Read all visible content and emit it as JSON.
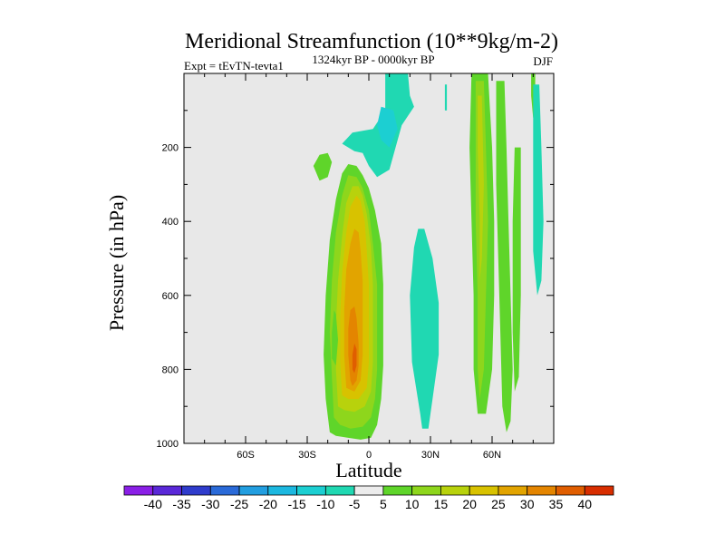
{
  "chart_data": {
    "type": "heatmap",
    "title": "Meridional Streamfunction (10**9kg/m-2)",
    "left_label": "Expt = tEvTN-tevta1",
    "center_label": "1324kyr BP - 0000kyr BP",
    "right_label": "DJF",
    "xlabel": "Latitude",
    "ylabel": "Pressure (in hPa)",
    "xlim": [
      -90,
      90
    ],
    "ylim": [
      1000,
      0
    ],
    "x_ticks": [
      {
        "value": -60,
        "label": "60S"
      },
      {
        "value": -30,
        "label": "30S"
      },
      {
        "value": 0,
        "label": "0"
      },
      {
        "value": 30,
        "label": "30N"
      },
      {
        "value": 60,
        "label": "60N"
      }
    ],
    "y_ticks": [
      {
        "value": 200,
        "label": "200"
      },
      {
        "value": 400,
        "label": "400"
      },
      {
        "value": 600,
        "label": "600"
      },
      {
        "value": 800,
        "label": "800"
      },
      {
        "value": 1000,
        "label": "1000"
      }
    ],
    "background_color": "#e8e8e8",
    "colorbar": {
      "levels": [
        "-40",
        "-35",
        "-30",
        "-25",
        "-20",
        "-15",
        "-10",
        "-5",
        "5",
        "10",
        "15",
        "20",
        "25",
        "30",
        "35",
        "40"
      ],
      "colors": [
        "#8a1fe6",
        "#5a28d8",
        "#2f3ccc",
        "#2a6ad8",
        "#229ee0",
        "#1cb8e0",
        "#1ccfd2",
        "#20d8b2",
        "#ececec",
        "#5fd52a",
        "#8ed61c",
        "#b8d20c",
        "#d8c200",
        "#e2a400",
        "#e48500",
        "#e05e00",
        "#d82e00"
      ]
    },
    "contours": [
      {
        "level": "10",
        "color": "#5fd52a",
        "points": [
          [
            -19,
            970
          ],
          [
            -21,
            880
          ],
          [
            -22,
            760
          ],
          [
            -21,
            600
          ],
          [
            -19,
            450
          ],
          [
            -16,
            340
          ],
          [
            -13,
            270
          ],
          [
            -10,
            245
          ],
          [
            -6,
            250
          ],
          [
            -3,
            275
          ],
          [
            0,
            310
          ],
          [
            3,
            370
          ],
          [
            6,
            460
          ],
          [
            7,
            570
          ],
          [
            7,
            690
          ],
          [
            7,
            790
          ],
          [
            6,
            880
          ],
          [
            4,
            950
          ],
          [
            1,
            985
          ],
          [
            -4,
            990
          ],
          [
            -10,
            985
          ],
          [
            -16,
            980
          ]
        ]
      },
      {
        "level": "15",
        "color": "#8ed61c",
        "points": [
          [
            -17,
            930
          ],
          [
            -18,
            820
          ],
          [
            -19,
            700
          ],
          [
            -18,
            560
          ],
          [
            -16,
            430
          ],
          [
            -13,
            330
          ],
          [
            -10,
            275
          ],
          [
            -6,
            280
          ],
          [
            -3,
            310
          ],
          [
            0,
            370
          ],
          [
            2,
            460
          ],
          [
            4,
            570
          ],
          [
            4,
            700
          ],
          [
            4,
            800
          ],
          [
            3,
            880
          ],
          [
            1,
            930
          ],
          [
            -3,
            955
          ],
          [
            -9,
            960
          ],
          [
            -14,
            950
          ]
        ]
      },
      {
        "level": "20",
        "color": "#b8d20c",
        "points": [
          [
            -15,
            900
          ],
          [
            -16,
            800
          ],
          [
            -16,
            680
          ],
          [
            -15,
            560
          ],
          [
            -13,
            440
          ],
          [
            -11,
            350
          ],
          [
            -8,
            305
          ],
          [
            -5,
            305
          ],
          [
            -3,
            330
          ],
          [
            -1,
            380
          ],
          [
            1,
            470
          ],
          [
            2,
            570
          ],
          [
            2,
            680
          ],
          [
            2,
            780
          ],
          [
            1,
            860
          ],
          [
            -2,
            900
          ],
          [
            -7,
            915
          ],
          [
            -12,
            910
          ]
        ]
      },
      {
        "level": "25",
        "color": "#d8c200",
        "points": [
          [
            -13,
            870
          ],
          [
            -14,
            780
          ],
          [
            -14,
            660
          ],
          [
            -13,
            540
          ],
          [
            -11,
            430
          ],
          [
            -9,
            360
          ],
          [
            -6,
            330
          ],
          [
            -4,
            345
          ],
          [
            -2,
            400
          ],
          [
            -1,
            480
          ],
          [
            0,
            570
          ],
          [
            0,
            680
          ],
          [
            0,
            780
          ],
          [
            -1,
            850
          ],
          [
            -5,
            880
          ],
          [
            -10,
            880
          ]
        ]
      },
      {
        "level": "30",
        "color": "#e2a400",
        "points": [
          [
            -11,
            850
          ],
          [
            -12,
            760
          ],
          [
            -12,
            640
          ],
          [
            -11,
            530
          ],
          [
            -9,
            460
          ],
          [
            -7,
            420
          ],
          [
            -5,
            430
          ],
          [
            -4,
            480
          ],
          [
            -3,
            560
          ],
          [
            -3,
            660
          ],
          [
            -3,
            760
          ],
          [
            -4,
            830
          ],
          [
            -7,
            860
          ]
        ]
      },
      {
        "level": "35",
        "color": "#e48500",
        "points": [
          [
            -9,
            830
          ],
          [
            -10,
            760
          ],
          [
            -10,
            690
          ],
          [
            -9,
            640
          ],
          [
            -7,
            630
          ],
          [
            -6,
            660
          ],
          [
            -5,
            730
          ],
          [
            -5,
            790
          ],
          [
            -6,
            830
          ],
          [
            -8,
            845
          ]
        ]
      },
      {
        "level": "40",
        "color": "#e05e00",
        "points": [
          [
            -8,
            800
          ],
          [
            -8,
            760
          ],
          [
            -7,
            730
          ],
          [
            -6,
            745
          ],
          [
            -6,
            790
          ],
          [
            -7,
            810
          ]
        ]
      },
      {
        "level": "-5",
        "color": "#20d8b2",
        "points": [
          [
            -7,
            210
          ],
          [
            -13,
            190
          ],
          [
            -8,
            160
          ],
          [
            2,
            150
          ],
          [
            8,
            100
          ],
          [
            8,
            0
          ],
          [
            19,
            0
          ],
          [
            20,
            60
          ],
          [
            22,
            90
          ],
          [
            16,
            140
          ],
          [
            13,
            200
          ],
          [
            10,
            260
          ],
          [
            4,
            280
          ],
          [
            0,
            250
          ],
          [
            -3,
            215
          ]
        ]
      },
      {
        "level": "-10",
        "color": "#1ccfd2",
        "points": [
          [
            6,
            90
          ],
          [
            12,
            100
          ],
          [
            14,
            150
          ],
          [
            10,
            200
          ],
          [
            6,
            180
          ],
          [
            4,
            140
          ]
        ]
      },
      {
        "level": "10",
        "color": "#5fd52a",
        "points": [
          [
            -24,
            220
          ],
          [
            -27,
            250
          ],
          [
            -24,
            290
          ],
          [
            -20,
            280
          ],
          [
            -18,
            240
          ],
          [
            -20,
            215
          ]
        ]
      },
      {
        "level": "10",
        "color": "#5fd52a",
        "points": [
          [
            -17,
            640
          ],
          [
            -18,
            700
          ],
          [
            -18,
            770
          ],
          [
            -16,
            790
          ],
          [
            -15,
            720
          ],
          [
            -16,
            650
          ]
        ]
      },
      {
        "level": "-5",
        "color": "#20d8b2",
        "points": [
          [
            25,
            920
          ],
          [
            21,
            780
          ],
          [
            20,
            600
          ],
          [
            22,
            470
          ],
          [
            24,
            420
          ],
          [
            27,
            420
          ],
          [
            31,
            500
          ],
          [
            34,
            620
          ],
          [
            34,
            760
          ],
          [
            31,
            880
          ],
          [
            29,
            960
          ],
          [
            26,
            960
          ]
        ]
      },
      {
        "level": "-5",
        "color": "#20d8b2",
        "points": [
          [
            37,
            30
          ],
          [
            38,
            30
          ],
          [
            38,
            100
          ],
          [
            37,
            100
          ]
        ]
      },
      {
        "level": "10",
        "color": "#5fd52a",
        "points": [
          [
            50,
            0
          ],
          [
            58,
            0
          ],
          [
            60,
            200
          ],
          [
            61,
            400
          ],
          [
            61,
            600
          ],
          [
            60,
            800
          ],
          [
            57,
            920
          ],
          [
            53,
            920
          ],
          [
            51,
            800
          ],
          [
            51,
            600
          ],
          [
            50,
            400
          ],
          [
            49,
            200
          ]
        ]
      },
      {
        "level": "15",
        "color": "#8ed61c",
        "points": [
          [
            52,
            20
          ],
          [
            56,
            20
          ],
          [
            57,
            200
          ],
          [
            58,
            400
          ],
          [
            57,
            600
          ],
          [
            56,
            800
          ],
          [
            54,
            880
          ],
          [
            53,
            800
          ],
          [
            53,
            600
          ],
          [
            52,
            400
          ],
          [
            52,
            200
          ]
        ]
      },
      {
        "level": "20",
        "color": "#b8d20c",
        "points": [
          [
            53,
            60
          ],
          [
            55,
            60
          ],
          [
            56,
            300
          ],
          [
            55,
            500
          ],
          [
            54,
            560
          ],
          [
            54,
            400
          ],
          [
            53,
            200
          ]
        ]
      },
      {
        "level": "10",
        "color": "#5fd52a",
        "points": [
          [
            62,
            20
          ],
          [
            66,
            20
          ],
          [
            67,
            200
          ],
          [
            68,
            400
          ],
          [
            69,
            600
          ],
          [
            70,
            800
          ],
          [
            69,
            940
          ],
          [
            67,
            970
          ],
          [
            65,
            900
          ],
          [
            64,
            700
          ],
          [
            63,
            500
          ],
          [
            62,
            300
          ]
        ]
      },
      {
        "level": "10",
        "color": "#5fd52a",
        "points": [
          [
            71,
            200
          ],
          [
            74,
            200
          ],
          [
            74,
            600
          ],
          [
            73,
            820
          ],
          [
            71,
            860
          ],
          [
            70,
            700
          ],
          [
            70,
            400
          ]
        ]
      },
      {
        "level": "10",
        "color": "#5fd52a",
        "points": [
          [
            79,
            0
          ],
          [
            81,
            0
          ],
          [
            81,
            100
          ],
          [
            80,
            120
          ],
          [
            79,
            60
          ]
        ]
      },
      {
        "level": "-5",
        "color": "#20d8b2",
        "points": [
          [
            80,
            30
          ],
          [
            83,
            30
          ],
          [
            84,
            200
          ],
          [
            85,
            400
          ],
          [
            84,
            560
          ],
          [
            82,
            600
          ],
          [
            80,
            480
          ],
          [
            80,
            200
          ]
        ]
      }
    ]
  }
}
